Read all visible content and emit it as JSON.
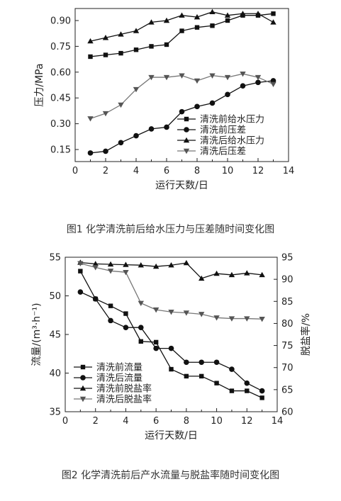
{
  "figures": [
    {
      "caption": "图1 化学清洗前后给水压力与压差随时间变化图",
      "chart_data": {
        "type": "line",
        "title": "",
        "xlabel": "运行天数/日",
        "ylabel": "压力/MPa",
        "xlim": [
          0,
          14
        ],
        "ylim": [
          0.08,
          0.97
        ],
        "xticks": [
          "0",
          "2",
          "4",
          "6",
          "8",
          "10",
          "12",
          "14"
        ],
        "yticks": [
          "0.15",
          "0.30",
          "0.45",
          "0.60",
          "0.75",
          "0.90"
        ],
        "ytick_values": [
          0.15,
          0.3,
          0.45,
          0.6,
          0.75,
          0.9
        ],
        "grid": false,
        "legend_position": "bottom-right",
        "series": [
          {
            "name": "清洗前给水压力",
            "marker": "square",
            "x": [
              1,
              2,
              3,
              4,
              5,
              6,
              7,
              8,
              9,
              10,
              11,
              12,
              13
            ],
            "values": [
              0.69,
              0.7,
              0.71,
              0.73,
              0.75,
              0.76,
              0.84,
              0.86,
              0.87,
              0.9,
              0.93,
              0.93,
              0.94
            ]
          },
          {
            "name": "清洗前压差",
            "marker": "circle",
            "x": [
              1,
              2,
              3,
              4,
              5,
              6,
              7,
              8,
              9,
              10,
              11,
              12,
              13
            ],
            "values": [
              0.13,
              0.14,
              0.19,
              0.23,
              0.27,
              0.28,
              0.37,
              0.4,
              0.42,
              0.47,
              0.52,
              0.54,
              0.55
            ]
          },
          {
            "name": "清洗后给水压力",
            "marker": "triangle-up",
            "x": [
              1,
              2,
              3,
              4,
              5,
              6,
              7,
              8,
              9,
              10,
              11,
              12,
              13
            ],
            "values": [
              0.78,
              0.8,
              0.82,
              0.84,
              0.89,
              0.9,
              0.93,
              0.92,
              0.95,
              0.93,
              0.94,
              0.94,
              0.89
            ]
          },
          {
            "name": "清洗后压差",
            "marker": "triangle-down",
            "x": [
              1,
              2,
              3,
              4,
              5,
              6,
              7,
              8,
              9,
              10,
              11,
              12,
              13
            ],
            "values": [
              0.33,
              0.36,
              0.41,
              0.5,
              0.57,
              0.57,
              0.58,
              0.55,
              0.58,
              0.57,
              0.59,
              0.57,
              0.53
            ]
          }
        ]
      }
    },
    {
      "caption": "图2 化学清洗前后产水流量与脱盐率随时间变化图",
      "chart_data": {
        "type": "line",
        "title": "",
        "xlabel": "运行天数/日",
        "ylabel": "流量/(m³·h⁻¹)",
        "y2label": "脱盐率/%",
        "xlim": [
          0,
          14
        ],
        "ylim": [
          35,
          55
        ],
        "y2lim": [
          60,
          95
        ],
        "xticks": [
          "0",
          "2",
          "4",
          "6",
          "8",
          "10",
          "12",
          "14"
        ],
        "yticks": [
          "35",
          "40",
          "45",
          "50",
          "55"
        ],
        "ytick_values": [
          35,
          40,
          45,
          50,
          55
        ],
        "y2ticks": [
          "60",
          "65",
          "70",
          "75",
          "80",
          "85",
          "90",
          "95"
        ],
        "y2tick_values": [
          60,
          65,
          70,
          75,
          80,
          85,
          90,
          95
        ],
        "grid": false,
        "legend_position": "bottom-left",
        "series": [
          {
            "name": "清洗前流量",
            "marker": "square",
            "axis": "left",
            "x": [
              1,
              2,
              3,
              4,
              5,
              6,
              7,
              8,
              9,
              10,
              11,
              12,
              13
            ],
            "values": [
              53.2,
              49.6,
              48.7,
              47.7,
              44.1,
              44.0,
              40.5,
              39.6,
              39.6,
              38.7,
              37.7,
              37.7,
              36.8
            ]
          },
          {
            "name": "清洗后流量",
            "marker": "circle",
            "axis": "left",
            "x": [
              1,
              2,
              3,
              4,
              5,
              6,
              7,
              8,
              9,
              10,
              11,
              12,
              13
            ],
            "values": [
              50.5,
              49.6,
              46.8,
              45.9,
              45.9,
              43.2,
              43.2,
              41.4,
              41.4,
              41.4,
              40.5,
              38.7,
              37.7
            ]
          },
          {
            "name": "清洗前脱盐率",
            "marker": "triangle-up",
            "axis": "right",
            "x": [
              1,
              2,
              3,
              4,
              5,
              6,
              7,
              8,
              9,
              10,
              11,
              12,
              13
            ],
            "values": [
              93.8,
              93.5,
              93.4,
              93.3,
              93.2,
              92.9,
              93.2,
              93.7,
              90.2,
              91.3,
              91.0,
              91.4,
              91.0
            ]
          },
          {
            "name": "清洗后脱盐率",
            "marker": "triangle-down",
            "axis": "right",
            "x": [
              1,
              2,
              3,
              4,
              5,
              6,
              7,
              8,
              9,
              10,
              11,
              12,
              13
            ],
            "values": [
              93.6,
              92.7,
              91.9,
              91.6,
              84.6,
              83.1,
              82.6,
              82.4,
              82.1,
              81.3,
              81.1,
              81.1,
              81.0
            ]
          }
        ]
      }
    }
  ]
}
